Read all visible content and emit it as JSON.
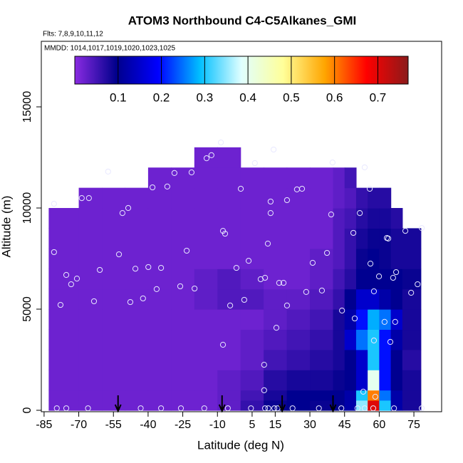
{
  "chart_data": {
    "type": "heatmap",
    "title": "ATOM3 Northbound C4-C5Alkanes_GMI",
    "subtitle": "Flts: 7,8,9,10,11,12",
    "annotation": "MMDD: 1014,1017,1019,1020,1023,1025",
    "x_label": "Latitude (deg N)",
    "y_label": "Altitude (m)",
    "xlim": [
      -86.2,
      87
    ],
    "ylim": [
      -70,
      18240
    ],
    "xticks": [
      -85,
      -70,
      -55,
      -40,
      -25,
      -10,
      5,
      15,
      30,
      45,
      60,
      75
    ],
    "yticks": [
      0,
      5000,
      10000,
      15000
    ],
    "clim": [
      0,
      0.77
    ],
    "cticks": [
      0.1,
      0.2,
      0.3,
      0.4,
      0.5,
      0.6,
      0.7
    ],
    "colormap": [
      "#8a2be2",
      "#00008b",
      "#0000ff",
      "#00bfff",
      "#e0ffff",
      "#ffff99",
      "#ffa500",
      "#ff0000",
      "#8b1a1a"
    ],
    "xbins": [
      -83,
      -70,
      -60,
      -50,
      -40,
      -30,
      -20,
      -10,
      0,
      10,
      20,
      30,
      40,
      45,
      50,
      55,
      60,
      65,
      70,
      78
    ],
    "ybins": [
      0,
      500,
      1000,
      2000,
      3000,
      4000,
      5000,
      6000,
      7000,
      8000,
      9000,
      10000,
      11000,
      12000,
      13000
    ],
    "z": [
      [
        0.02,
        0.02,
        0.02,
        0.02,
        0.02,
        0.02,
        0.02,
        0.03,
        0.06,
        0.09,
        0.1,
        0.09,
        0.1,
        0.12,
        0.35,
        0.7,
        0.3,
        0.12,
        0.08
      ],
      [
        0.02,
        0.02,
        0.02,
        0.02,
        0.02,
        0.02,
        0.02,
        0.03,
        0.05,
        0.08,
        0.1,
        0.1,
        0.1,
        0.12,
        0.3,
        0.6,
        0.25,
        0.12,
        0.08
      ],
      [
        0.02,
        0.02,
        0.02,
        0.02,
        0.02,
        0.02,
        0.02,
        0.03,
        0.04,
        0.07,
        0.08,
        0.08,
        0.09,
        0.1,
        0.15,
        0.4,
        0.2,
        0.1,
        0.08
      ],
      [
        0.02,
        0.02,
        0.02,
        0.02,
        0.02,
        0.02,
        0.02,
        0.02,
        0.03,
        0.05,
        0.06,
        0.07,
        0.08,
        0.1,
        0.15,
        0.3,
        0.2,
        0.1,
        0.07
      ],
      [
        0.02,
        0.02,
        0.02,
        0.02,
        0.02,
        0.02,
        0.02,
        0.02,
        0.03,
        0.04,
        0.05,
        0.06,
        0.08,
        0.15,
        0.25,
        0.3,
        0.2,
        0.12,
        0.08
      ],
      [
        0.02,
        0.02,
        0.02,
        0.02,
        0.02,
        0.02,
        0.02,
        0.02,
        0.02,
        0.03,
        0.04,
        0.05,
        0.08,
        0.12,
        0.2,
        0.28,
        0.25,
        0.15,
        0.08
      ],
      [
        0.02,
        0.02,
        0.02,
        0.02,
        0.02,
        0.02,
        0.03,
        0.04,
        0.04,
        0.03,
        0.03,
        0.04,
        0.06,
        0.1,
        0.15,
        0.15,
        0.12,
        0.1,
        0.08
      ],
      [
        0.02,
        0.02,
        0.02,
        0.02,
        0.02,
        0.02,
        0.03,
        0.04,
        0.03,
        0.02,
        0.02,
        0.03,
        0.05,
        0.07,
        0.1,
        0.1,
        0.1,
        0.1,
        0.09
      ],
      [
        0.02,
        0.02,
        0.02,
        0.02,
        0.02,
        0.02,
        0.02,
        0.02,
        0.02,
        0.02,
        0.02,
        0.03,
        0.04,
        0.06,
        0.09,
        0.1,
        0.09,
        0.08,
        0.08
      ],
      [
        0.02,
        0.02,
        0.02,
        0.02,
        0.02,
        0.02,
        0.02,
        0.02,
        0.02,
        0.02,
        0.02,
        0.02,
        0.04,
        0.06,
        0.08,
        0.09,
        0.09,
        0.08,
        0.08
      ],
      [
        0.02,
        0.02,
        0.02,
        0.02,
        0.02,
        0.02,
        0.02,
        0.02,
        0.02,
        0.02,
        0.02,
        0.02,
        0.04,
        0.05,
        0.07,
        0.08,
        0.08,
        0.07,
        null
      ],
      [
        null,
        0.02,
        0.02,
        0.02,
        0.02,
        0.02,
        0.02,
        0.02,
        0.02,
        0.02,
        0.02,
        0.02,
        0.03,
        0.04,
        0.06,
        0.07,
        0.07,
        null,
        null
      ],
      [
        null,
        null,
        null,
        null,
        0.02,
        0.02,
        0.02,
        0.02,
        0.02,
        0.02,
        0.02,
        0.02,
        0.03,
        0.05,
        null,
        null,
        null,
        null,
        null
      ],
      [
        null,
        null,
        null,
        null,
        null,
        null,
        0.02,
        0.02,
        null,
        null,
        null,
        null,
        null,
        null,
        null,
        null,
        null,
        null,
        null
      ]
    ],
    "points": {
      "x": [
        -80.7,
        -80.7,
        -77.9,
        -75.4,
        -73.3,
        -70.8,
        -68.7,
        -65.6,
        -63.4,
        -60.9,
        -57.3,
        -52.6,
        -51.1,
        -48.6,
        -47.7,
        -45.5,
        -42.2,
        -39.9,
        -38.1,
        -36.3,
        -34.4,
        -31.7,
        -28.6,
        -26.1,
        -23.3,
        -21.2,
        -19.9,
        -14.7,
        -12.6,
        -8.5,
        -7.6,
        -6.7,
        -7.6,
        -4.5,
        -1.8,
        0.1,
        1.6,
        3.5,
        6.2,
        8.7,
        10.6,
        11.8,
        13.0,
        13.0,
        14.3,
        16.7,
        18.6,
        10.2,
        10.2,
        15.5,
        20.1,
        20.1,
        24.4,
        26.6,
        28.4,
        31.2,
        35.2,
        37.4,
        39.2,
        39.8,
        43.9,
        48.8,
        49.4,
        51.6,
        53.7,
        55.9,
        56.2,
        57.7,
        59.9,
        63.3,
        63.9,
        66.0,
        67.3,
        71.3,
        73.8,
        76.6,
        78.4,
        62.3,
        64.8,
        66.9,
        57.7,
        53.1,
        58.3,
        -79.5,
        -75.4,
        -66.0,
        -43.2,
        -34.4,
        -25.8,
        -15.7,
        -5.5,
        4.5,
        10.6,
        12.0,
        14.6,
        16.0,
        22.5,
        33.9,
        43.6,
        50.6,
        53.7,
        57.4,
        66.4,
        78.4
      ],
      "y": [
        10210,
        7820,
        5210,
        6690,
        6230,
        6510,
        10490,
        10490,
        5390,
        6940,
        11800,
        7710,
        9750,
        10000,
        5350,
        7000,
        5530,
        7080,
        11020,
        5990,
        7040,
        11060,
        11730,
        6130,
        7890,
        11760,
        6020,
        12460,
        12610,
        13240,
        8870,
        8730,
        3240,
        5180,
        7040,
        10950,
        5460,
        7390,
        12220,
        6480,
        6550,
        8240,
        9750,
        10320,
        12890,
        6300,
        6300,
        2250,
        990,
        4080,
        5180,
        10390,
        10920,
        10950,
        5850,
        7290,
        5920,
        7780,
        9680,
        12250,
        4930,
        8770,
        4540,
        9750,
        12010,
        10950,
        7250,
        5880,
        6620,
        8520,
        8490,
        6550,
        6830,
        8870,
        5810,
        6230,
        9010,
        4370,
        3380,
        4370,
        3450,
        920,
        670,
        100,
        100,
        100,
        100,
        100,
        100,
        100,
        100,
        100,
        100,
        100,
        100,
        100,
        100,
        100,
        100,
        100,
        100,
        100,
        100,
        100
      ]
    },
    "arrows_x": [
      -53,
      -8,
      18,
      40
    ]
  }
}
